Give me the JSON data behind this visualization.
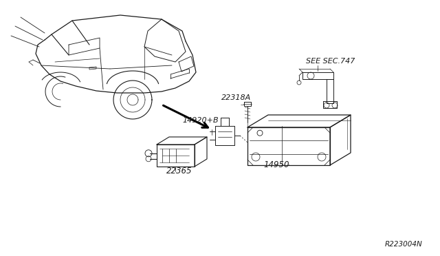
{
  "bg_color": "#ffffff",
  "line_color": "#1a1a1a",
  "fig_width": 6.4,
  "fig_height": 3.72,
  "dpi": 100,
  "labels": {
    "see_sec": "SEE SEC.747",
    "part_22318A": "22318A",
    "part_14920B": "14920+B",
    "part_14950": "14950",
    "part_22365": "22365",
    "ref_code": "R223004N"
  }
}
